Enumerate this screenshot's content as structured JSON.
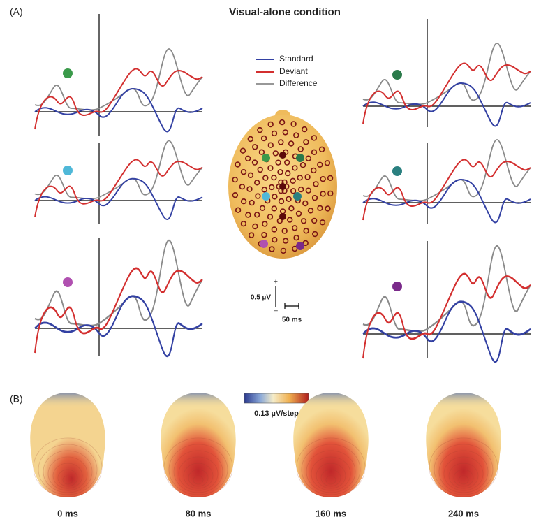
{
  "panel_a": {
    "label": "(A)",
    "title": "Visual-alone condition",
    "legend": [
      "Standard",
      "Deviant",
      "Difference"
    ],
    "scale_bar": {
      "plus": "+",
      "minus": "–",
      "amplitude": "0.5 µV",
      "time": "50 ms"
    }
  },
  "panel_b": {
    "label": "(B)",
    "colorbar_label": "0.13 µV/step",
    "maps": [
      "0 ms",
      "80 ms",
      "160 ms",
      "240 ms"
    ]
  }
}
